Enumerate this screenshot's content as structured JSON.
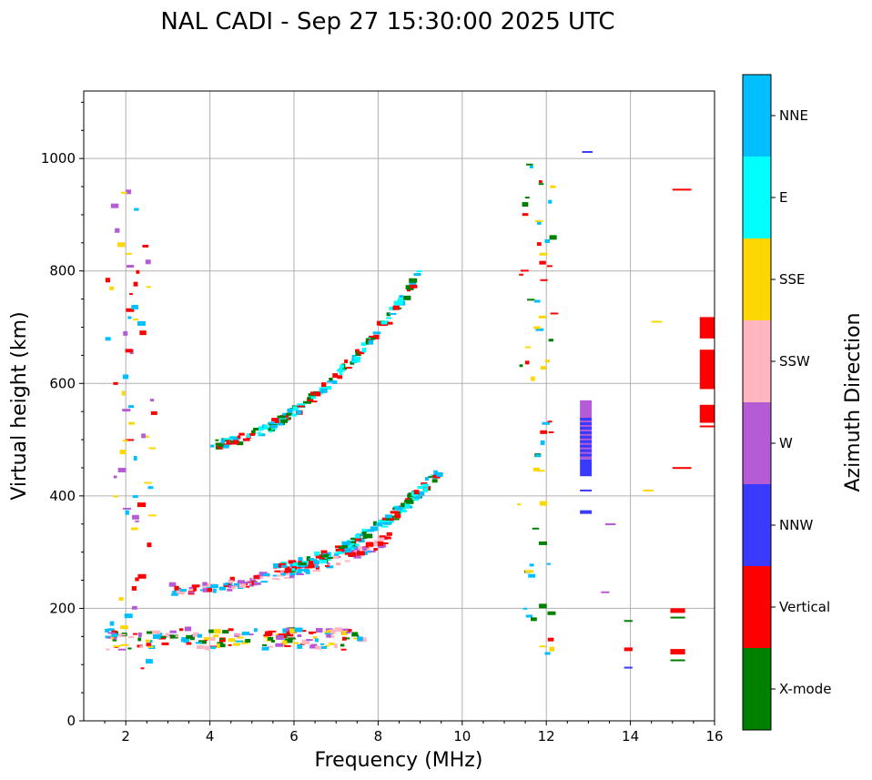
{
  "chart_data": {
    "type": "scatter",
    "title": "NAL CADI - Sep 27 15:30:00 2025 UTC",
    "xlabel": "Frequency (MHz)",
    "ylabel": "Virtual height (km)",
    "xlim": [
      1,
      16
    ],
    "ylim": [
      0,
      1120
    ],
    "xticks": [
      2,
      4,
      6,
      8,
      10,
      12,
      14,
      16
    ],
    "yticks": [
      0,
      200,
      400,
      600,
      800,
      1000
    ],
    "grid": true,
    "colorbar": {
      "label": "Azimuth Direction",
      "categories": [
        {
          "name": "X-mode",
          "color": "#008000"
        },
        {
          "name": "Vertical",
          "color": "#ff0000"
        },
        {
          "name": "NNW",
          "color": "#3a3aff"
        },
        {
          "name": "W",
          "color": "#b55bd6"
        },
        {
          "name": "SSW",
          "color": "#ffb6c1"
        },
        {
          "name": "SSE",
          "color": "#ffd700"
        },
        {
          "name": "E",
          "color": "#00ffff"
        },
        {
          "name": "NNE",
          "color": "#00bfff"
        }
      ]
    },
    "traces": [
      {
        "name": "E-layer trace",
        "category_mix": [
          "Vertical",
          "NNE",
          "SSW",
          "X-mode",
          "SSE",
          "W"
        ],
        "freq_range": [
          1.5,
          7.6
        ],
        "height_range": [
          125,
          160
        ]
      },
      {
        "name": "F-layer trace (ordinary)",
        "category_mix": [
          "Vertical",
          "NNE",
          "SSW",
          "W"
        ],
        "freq_range": [
          3.0,
          8.2
        ],
        "height_range": [
          230,
          320
        ]
      },
      {
        "name": "F-layer trace (X-mode)",
        "category_mix": [
          "X-mode",
          "Vertical",
          "NNE",
          "E"
        ],
        "freq_range": [
          5.5,
          9.4
        ],
        "height_range": [
          270,
          440
        ]
      },
      {
        "name": "Second-hop trace",
        "category_mix": [
          "Vertical",
          "NNE",
          "X-mode",
          "E"
        ],
        "freq_range": [
          4.0,
          9.0
        ],
        "height_range": [
          490,
          800
        ]
      },
      {
        "name": "Low-frequency vertical spread",
        "category_mix": [
          "NNE",
          "W",
          "SSE",
          "Vertical"
        ],
        "freq_range": [
          1.5,
          2.6
        ],
        "height_range": [
          90,
          950
        ]
      },
      {
        "name": "12 MHz interference column",
        "category_mix": [
          "X-mode",
          "Vertical",
          "SSE",
          "NNE"
        ],
        "freq_range": [
          11.3,
          12.1
        ],
        "height_range": [
          100,
          1010
        ]
      },
      {
        "name": "13 MHz NNW/W band",
        "category_mix": [
          "W",
          "NNW"
        ],
        "freq_range": [
          12.8,
          13.1
        ],
        "height_range": [
          360,
          570
        ]
      },
      {
        "name": "15.8 MHz vertical band",
        "category_mix": [
          "Vertical"
        ],
        "freq_range": [
          15.6,
          16.0
        ],
        "height_range": [
          520,
          720
        ]
      }
    ]
  }
}
